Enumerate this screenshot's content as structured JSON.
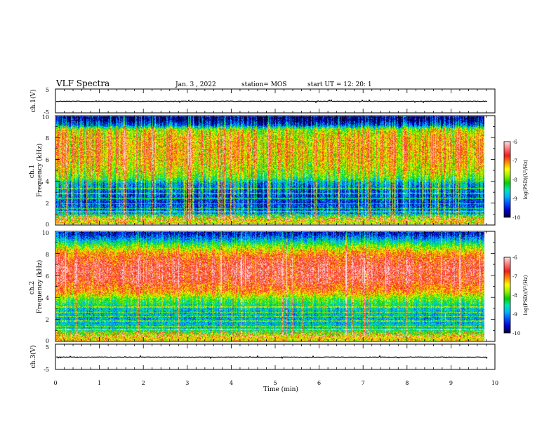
{
  "header": {
    "title": "VLF Spectra",
    "date": "Jan. 3 , 2022",
    "station": "station= MOS",
    "start": "start UT = 12: 20: 1"
  },
  "chart_data": [
    {
      "type": "line",
      "panel": "ch1-waveform",
      "ylabel": "ch.1(V)",
      "ylim": [
        -5,
        5
      ],
      "y_ticks": [
        "5",
        "-5"
      ],
      "xlim": [
        0,
        10
      ],
      "series": [
        {
          "values_description_free": true,
          "y_level": 0
        }
      ]
    },
    {
      "type": "heatmap",
      "panel": "ch1-spectrogram",
      "ylabel": "ch.1\nFrequency (kHz)",
      "ylim": [
        0,
        10
      ],
      "y_ticks": [
        "0",
        "2",
        "4",
        "6",
        "8",
        "10"
      ],
      "xlim": [
        0,
        10
      ],
      "profile_freq_khz": [
        0.3,
        0.6,
        1.0,
        2.0,
        3.0,
        3.8,
        4.3,
        5.0,
        6.0,
        7.0,
        8.0,
        8.8,
        9.2,
        9.7
      ],
      "profile_log_psd": [
        -7.5,
        -7.9,
        -9.0,
        -9.4,
        -9.2,
        -8.8,
        -8.0,
        -7.6,
        -7.3,
        -7.2,
        -7.3,
        -7.7,
        -9.2,
        -9.9
      ],
      "colorbar": {
        "label": "log(PSD)(V²/Hz)",
        "min": -10,
        "max": -6,
        "ticks": [
          "-6",
          "-7",
          "-8",
          "-9",
          "-10"
        ]
      }
    },
    {
      "type": "heatmap",
      "panel": "ch2-spectrogram",
      "ylabel": "ch.2\nFrequency (kHz)",
      "ylim": [
        0,
        10
      ],
      "y_ticks": [
        "0",
        "2",
        "4",
        "6",
        "8",
        "10"
      ],
      "xlim": [
        0,
        10
      ],
      "profile_freq_khz": [
        0.3,
        0.6,
        1.0,
        2.0,
        3.0,
        3.8,
        4.5,
        5.5,
        6.5,
        7.5,
        8.2,
        8.8,
        9.3,
        9.8
      ],
      "profile_log_psd": [
        -7.4,
        -7.9,
        -8.6,
        -8.9,
        -8.6,
        -8.0,
        -7.1,
        -6.6,
        -6.5,
        -6.7,
        -7.2,
        -8.0,
        -8.8,
        -9.5
      ],
      "colorbar": {
        "label": "log(PSD)(V²/Hz)",
        "min": -10,
        "max": -6,
        "ticks": [
          "-6",
          "-7",
          "-8",
          "-9",
          "-10"
        ]
      }
    },
    {
      "type": "line",
      "panel": "ch3-waveform",
      "ylabel": "ch.3(V)",
      "ylim": [
        -5,
        5
      ],
      "y_ticks": [
        "5",
        "-5"
      ],
      "xlim": [
        0,
        10
      ],
      "xlabel": "Time (min)",
      "x_ticks": [
        "0",
        "1",
        "2",
        "3",
        "4",
        "5",
        "6",
        "7",
        "8",
        "9",
        "10"
      ],
      "data_end_min": 9.83
    }
  ],
  "colors": {
    "colormap": [
      "#00003c",
      "#0000d2",
      "#0050ff",
      "#00b4ff",
      "#00e6b4",
      "#00d200",
      "#96f000",
      "#ffff00",
      "#ff8c00",
      "#f01e1e",
      "#ff7878",
      "#ffdcdc"
    ],
    "baseline": "#000000"
  }
}
